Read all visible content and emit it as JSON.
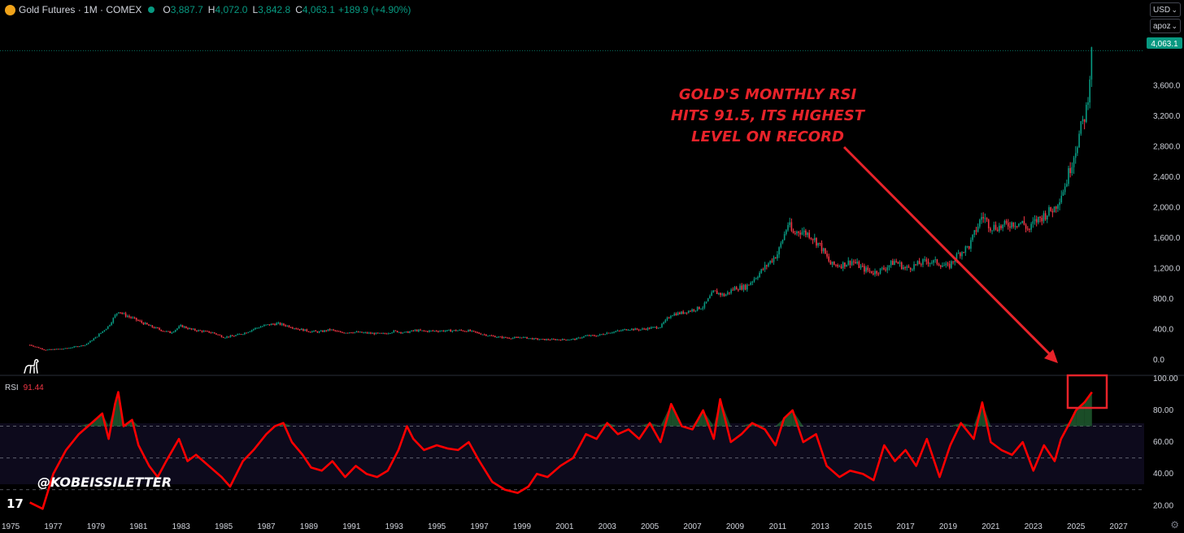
{
  "header": {
    "symbol": "Gold Futures · 1M · COMEX",
    "open_label": "O",
    "open": "3,887.7",
    "high_label": "H",
    "high": "4,072.0",
    "low_label": "L",
    "low": "3,842.8",
    "close_label": "C",
    "close": "4,063.1",
    "change": "+189.9 (+4.90%)",
    "up_color": "#089981"
  },
  "controls": {
    "currency": "USD",
    "scale": "apoz"
  },
  "price_badge": "4,063.1",
  "rsi_label": {
    "name": "RSI",
    "value": "91.44"
  },
  "annotation": [
    "GOLD'S MONTHLY RSI",
    "HITS 91.5, ITS HIGHEST",
    "LEVEL ON RECORD"
  ],
  "watermark": "@KOBEISSILETTER",
  "brand_mark": "17",
  "colors": {
    "up": "#089981",
    "down": "#f23645",
    "rsi_line": "#ff0000",
    "annotation": "#e8232a",
    "background": "#000000"
  },
  "icons": {
    "logo": "gold-coin-icon",
    "market_status": "green-dot-icon",
    "dinosaur": "dinosaur-icon",
    "settings": "gear-icon"
  },
  "chart_data": [
    {
      "type": "candlestick",
      "title": "Gold Futures · 1M · COMEX",
      "ylim": [
        -200,
        4300
      ],
      "yticks": [
        0,
        400,
        800,
        1200,
        1600,
        2000,
        2400,
        2800,
        3200,
        3600
      ],
      "ytick_labels": [
        "0.0",
        "400.0",
        "800.0",
        "1,200.0",
        "1,600.0",
        "2,000.0",
        "2,400.0",
        "2,800.0",
        "3,200.0",
        "3,600.0"
      ],
      "xlim": [
        1974.5,
        2028.2
      ],
      "xticks": [
        1975,
        1977,
        1979,
        1981,
        1983,
        1985,
        1987,
        1989,
        1991,
        1993,
        1995,
        1997,
        1999,
        2001,
        2003,
        2005,
        2007,
        2009,
        2011,
        2013,
        2015,
        2017,
        2019,
        2021,
        2023,
        2025,
        2027
      ],
      "xtick_labels": [
        "1975",
        "1977",
        "1979",
        "1981",
        "1983",
        "1985",
        "1987",
        "1989",
        "1991",
        "1993",
        "1995",
        "1997",
        "1999",
        "2001",
        "2003",
        "2005",
        "2007",
        "2009",
        "2011",
        "2013",
        "2015",
        "2017",
        "2019",
        "2021",
        "2023",
        "2025",
        "2027"
      ],
      "last": 4063.1,
      "x": [
        1975.9,
        1976.6,
        1977.5,
        1978.5,
        1979.0,
        1979.6,
        1980.05,
        1980.3,
        1980.8,
        1981.5,
        1982.0,
        1982.5,
        1983.0,
        1983.5,
        1984.0,
        1984.5,
        1985.0,
        1985.5,
        1986.0,
        1986.5,
        1987.0,
        1987.5,
        1988.0,
        1988.5,
        1989.0,
        1989.5,
        1990.0,
        1990.5,
        1991.0,
        1991.5,
        1992.0,
        1992.5,
        1993.0,
        1993.5,
        1994.0,
        1994.5,
        1995.0,
        1995.5,
        1996.0,
        1996.5,
        1997.0,
        1997.5,
        1998.0,
        1998.5,
        1999.0,
        1999.5,
        2000.0,
        2000.5,
        2001.0,
        2001.5,
        2002.0,
        2002.5,
        2003.0,
        2003.5,
        2004.0,
        2004.5,
        2005.0,
        2005.5,
        2006.0,
        2006.5,
        2007.0,
        2007.5,
        2008.0,
        2008.5,
        2009.0,
        2009.5,
        2010.0,
        2010.5,
        2011.0,
        2011.5,
        2011.7,
        2012.0,
        2012.5,
        2013.0,
        2013.5,
        2014.0,
        2014.5,
        2015.0,
        2015.5,
        2016.0,
        2016.5,
        2017.0,
        2017.5,
        2018.0,
        2018.5,
        2019.0,
        2019.5,
        2020.0,
        2020.6,
        2021.0,
        2021.5,
        2022.0,
        2022.5,
        2022.8,
        2023.0,
        2023.5,
        2024.0,
        2024.5,
        2025.0,
        2025.5,
        2025.75
      ],
      "close": [
        200,
        135,
        150,
        200,
        300,
        450,
        650,
        600,
        540,
        450,
        400,
        360,
        450,
        400,
        380,
        360,
        300,
        320,
        360,
        420,
        460,
        480,
        450,
        410,
        380,
        370,
        400,
        360,
        370,
        360,
        350,
        345,
        380,
        360,
        390,
        380,
        385,
        385,
        390,
        385,
        350,
        320,
        300,
        290,
        300,
        280,
        270,
        270,
        270,
        275,
        320,
        320,
        360,
        380,
        410,
        400,
        420,
        440,
        600,
        620,
        660,
        700,
        900,
        850,
        950,
        960,
        1100,
        1250,
        1400,
        1800,
        1650,
        1700,
        1650,
        1500,
        1250,
        1250,
        1300,
        1200,
        1150,
        1200,
        1300,
        1200,
        1250,
        1300,
        1280,
        1220,
        1400,
        1500,
        1900,
        1750,
        1750,
        1800,
        1800,
        1700,
        1800,
        1900,
        2000,
        2300,
        2800,
        3300,
        4063.1
      ]
    },
    {
      "type": "line",
      "title": "RSI",
      "ylim": [
        13,
        102
      ],
      "yticks": [
        20,
        40,
        60,
        80,
        100
      ],
      "ytick_labels": [
        "20.00",
        "40.00",
        "60.00",
        "80.00",
        "100.00"
      ],
      "bands": [
        30,
        50,
        70
      ],
      "x": [
        1975.9,
        1976.5,
        1977.0,
        1977.6,
        1978.2,
        1978.8,
        1979.3,
        1979.6,
        1979.9,
        1980.05,
        1980.3,
        1980.7,
        1981.0,
        1981.5,
        1981.9,
        1982.3,
        1982.9,
        1983.3,
        1983.7,
        1984.3,
        1984.9,
        1985.3,
        1985.9,
        1986.4,
        1987.0,
        1987.4,
        1987.8,
        1988.2,
        1988.7,
        1989.1,
        1989.6,
        1990.1,
        1990.7,
        1991.2,
        1991.7,
        1992.2,
        1992.7,
        1993.2,
        1993.6,
        1993.9,
        1994.4,
        1995.0,
        1995.5,
        1996.0,
        1996.5,
        1997.0,
        1997.6,
        1998.2,
        1998.8,
        1999.3,
        1999.7,
        2000.2,
        2000.8,
        2001.4,
        2002.0,
        2002.5,
        2003.0,
        2003.5,
        2004.0,
        2004.5,
        2005.0,
        2005.5,
        2006.0,
        2006.5,
        2007.0,
        2007.5,
        2008.0,
        2008.3,
        2008.8,
        2009.3,
        2009.8,
        2010.4,
        2010.9,
        2011.3,
        2011.7,
        2012.2,
        2012.8,
        2013.3,
        2013.9,
        2014.4,
        2015.0,
        2015.5,
        2016.0,
        2016.5,
        2017.0,
        2017.5,
        2018.0,
        2018.6,
        2019.1,
        2019.6,
        2020.2,
        2020.6,
        2021.0,
        2021.5,
        2022.0,
        2022.5,
        2023.0,
        2023.5,
        2024.0,
        2024.3,
        2024.7,
        2025.0,
        2025.4,
        2025.75
      ],
      "values": [
        22,
        18,
        40,
        55,
        65,
        72,
        78,
        62,
        84,
        91.5,
        70,
        74,
        58,
        45,
        38,
        48,
        62,
        48,
        52,
        45,
        38,
        32,
        48,
        55,
        65,
        70,
        72,
        60,
        52,
        44,
        42,
        48,
        38,
        45,
        40,
        38,
        42,
        55,
        70,
        62,
        55,
        58,
        56,
        55,
        60,
        48,
        35,
        30,
        28,
        32,
        40,
        38,
        45,
        50,
        65,
        62,
        72,
        65,
        68,
        62,
        72,
        60,
        84,
        70,
        68,
        80,
        62,
        87,
        60,
        65,
        72,
        68,
        58,
        75,
        80,
        60,
        65,
        45,
        38,
        42,
        40,
        36,
        58,
        48,
        55,
        45,
        62,
        38,
        58,
        72,
        62,
        85,
        60,
        55,
        52,
        60,
        42,
        58,
        48,
        62,
        72,
        80,
        85,
        91.44
      ]
    }
  ]
}
